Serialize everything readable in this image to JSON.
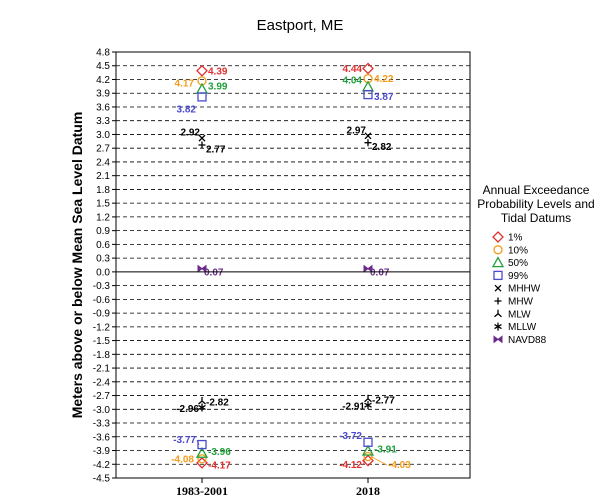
{
  "chart_data": {
    "type": "scatter",
    "title": "Eastport, ME",
    "ylabel": "Meters above or below Mean Sea Level Datum",
    "xlabel": "",
    "categories": [
      "1983-2001",
      "2018"
    ],
    "ylim": [
      -4.5,
      4.8
    ],
    "ytick_step": 0.3,
    "grid": "horizontal-dashed",
    "legend": {
      "title": [
        "Annual Exceedance",
        "Probability Levels and",
        "Tidal Datums"
      ],
      "placement": "right"
    },
    "series": [
      {
        "name": "1%",
        "marker": "diamond",
        "color": "#e0302f",
        "upper": [
          4.39,
          4.44
        ],
        "lower": [
          -4.17,
          -4.12
        ]
      },
      {
        "name": "10%",
        "marker": "circle",
        "color": "#f39c1a",
        "upper": [
          4.17,
          4.22
        ],
        "lower": [
          -4.08,
          -4.03
        ]
      },
      {
        "name": "50%",
        "marker": "triangle",
        "color": "#1fa03a",
        "upper": [
          3.99,
          4.04
        ],
        "lower": [
          -3.96,
          -3.91
        ]
      },
      {
        "name": "99%",
        "marker": "square",
        "color": "#4a4ad0",
        "upper": [
          3.82,
          3.87
        ],
        "lower": [
          -3.77,
          -3.72
        ]
      },
      {
        "name": "MHHW",
        "marker": "x",
        "color": "#000000",
        "values": [
          2.92,
          2.97
        ]
      },
      {
        "name": "MHW",
        "marker": "plus",
        "color": "#000000",
        "values": [
          2.77,
          2.82
        ]
      },
      {
        "name": "MLW",
        "marker": "tripod",
        "color": "#000000",
        "values": [
          -2.82,
          -2.77
        ]
      },
      {
        "name": "MLLW",
        "marker": "star",
        "color": "#000000",
        "values": [
          -2.96,
          -2.91
        ]
      },
      {
        "name": "NAVD88",
        "marker": "bowtie",
        "color": "#6a2c8a",
        "values": [
          0.07,
          0.07
        ]
      }
    ]
  }
}
